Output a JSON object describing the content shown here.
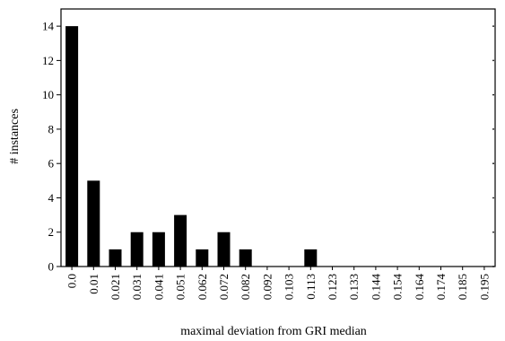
{
  "chart_data": {
    "type": "bar",
    "xlabel": "maximal deviation from GRI median",
    "ylabel": "# instances",
    "ylim": [
      0,
      15
    ],
    "yticks": [
      0,
      2,
      4,
      6,
      8,
      10,
      12,
      14
    ],
    "categories": [
      "0.0",
      "0.01",
      "0.021",
      "0.031",
      "0.041",
      "0.051",
      "0.062",
      "0.072",
      "0.082",
      "0.092",
      "0.103",
      "0.113",
      "0.123",
      "0.133",
      "0.144",
      "0.154",
      "0.164",
      "0.174",
      "0.185",
      "0.195"
    ],
    "values": [
      14,
      5,
      1,
      2,
      2,
      3,
      1,
      2,
      1,
      0,
      0,
      1,
      0,
      0,
      0,
      0,
      0,
      0,
      0,
      0
    ],
    "bar_color": "#000000",
    "grid": false,
    "legend": "none"
  }
}
